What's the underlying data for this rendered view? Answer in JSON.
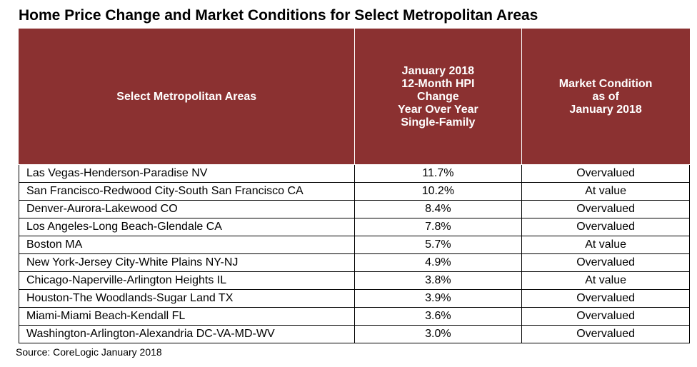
{
  "title": "Home Price Change and Market Conditions for Select Metropolitan Areas",
  "source": "Source: CoreLogic January 2018",
  "table": {
    "header_bg": "#8b3131",
    "header_fg": "#ffffff",
    "row_bg": "#ffffff",
    "row_fg": "#000000",
    "border_color": "#000000",
    "columns": [
      {
        "label_lines": [
          "Select Metropolitan Areas"
        ],
        "align": "left",
        "width_pct": 50
      },
      {
        "label_lines": [
          "January 2018",
          "12-Month HPI",
          "Change",
          "Year Over Year",
          "Single-Family"
        ],
        "align": "center",
        "width_pct": 25
      },
      {
        "label_lines": [
          "Market Condition",
          "as of",
          "January 2018"
        ],
        "align": "center",
        "width_pct": 25
      }
    ],
    "rows": [
      {
        "area": "Las Vegas-Henderson-Paradise NV",
        "hpi": "11.7%",
        "condition": "Overvalued"
      },
      {
        "area": "San Francisco-Redwood City-South San Francisco CA",
        "hpi": "10.2%",
        "condition": "At value"
      },
      {
        "area": "Denver-Aurora-Lakewood CO",
        "hpi": "8.4%",
        "condition": "Overvalued"
      },
      {
        "area": "Los Angeles-Long Beach-Glendale CA",
        "hpi": "7.8%",
        "condition": "Overvalued"
      },
      {
        "area": "Boston MA",
        "hpi": "5.7%",
        "condition": "At value"
      },
      {
        "area": "New York-Jersey City-White Plains NY-NJ",
        "hpi": "4.9%",
        "condition": "Overvalued"
      },
      {
        "area": "Chicago-Naperville-Arlington Heights IL",
        "hpi": "3.8%",
        "condition": "At value"
      },
      {
        "area": "Houston-The Woodlands-Sugar Land TX",
        "hpi": "3.9%",
        "condition": "Overvalued"
      },
      {
        "area": "Miami-Miami Beach-Kendall FL",
        "hpi": "3.6%",
        "condition": "Overvalued"
      },
      {
        "area": "Washington-Arlington-Alexandria DC-VA-MD-WV",
        "hpi": "3.0%",
        "condition": "Overvalued"
      }
    ]
  }
}
